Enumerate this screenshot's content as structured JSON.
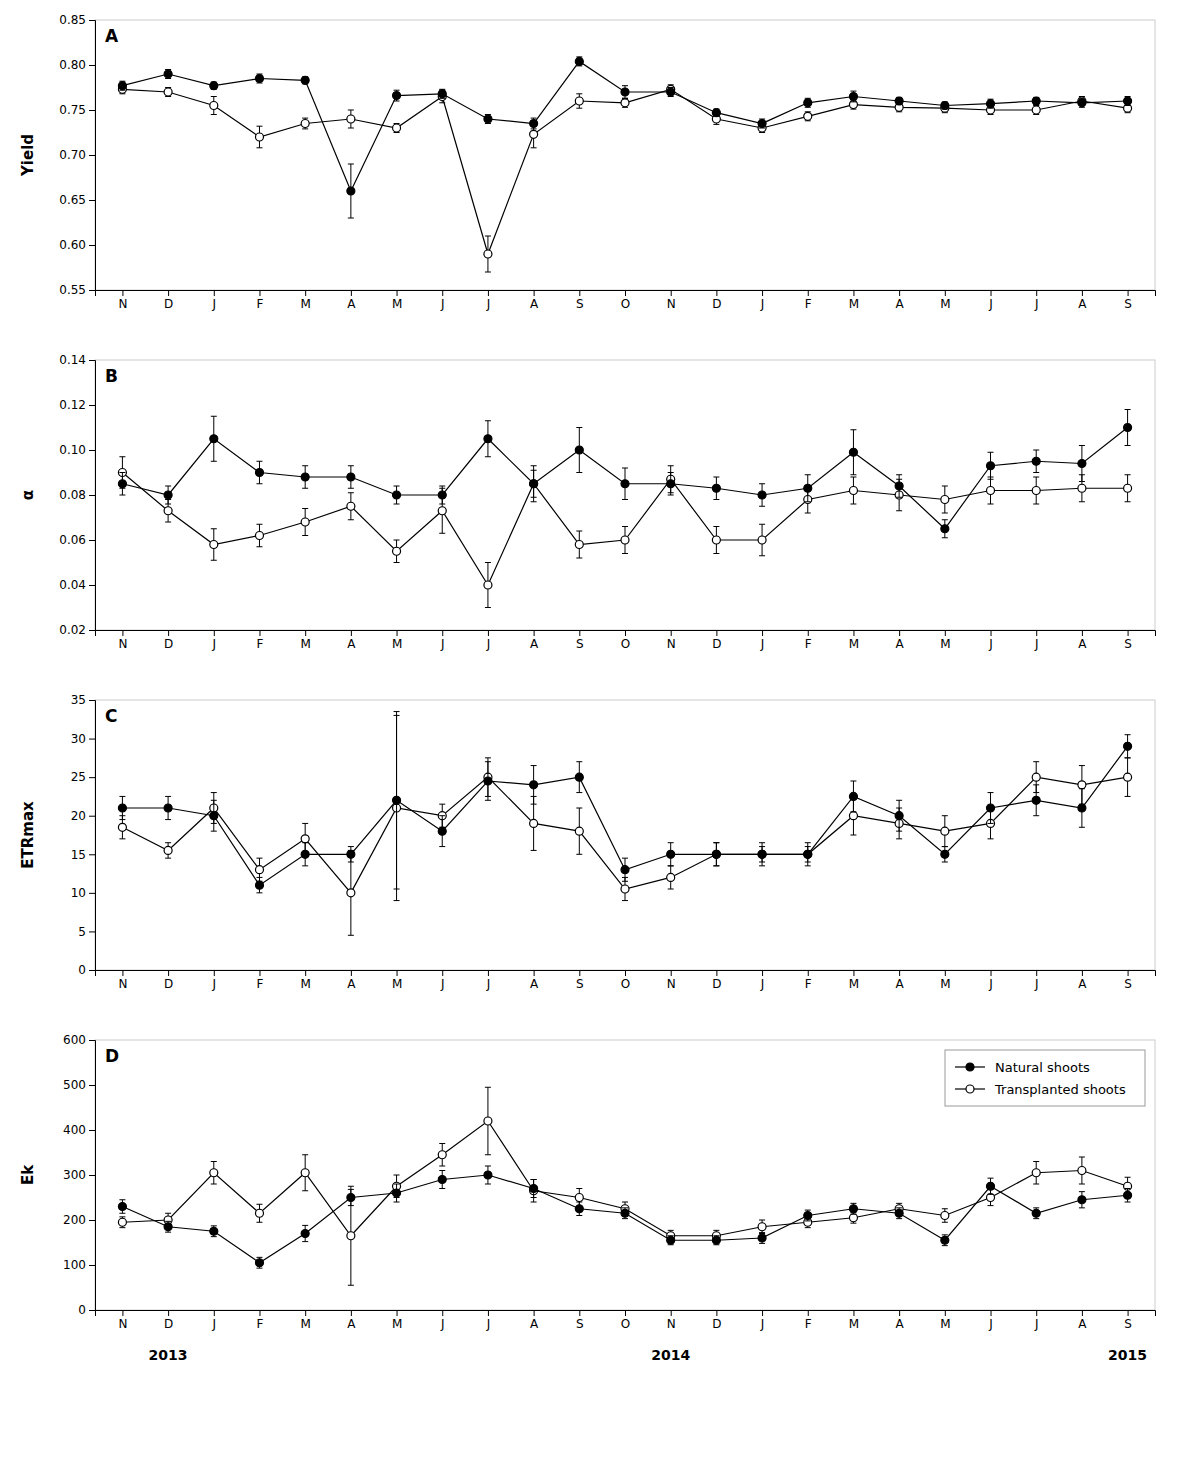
{
  "chart_data": [
    {
      "type": "line",
      "title": "A",
      "y_label": "Yield",
      "categories": [
        "N",
        "D",
        "J",
        "F",
        "M",
        "A",
        "M",
        "J",
        "J",
        "A",
        "S",
        "O",
        "N",
        "D",
        "J",
        "F",
        "M",
        "A",
        "M",
        "J",
        "J",
        "A",
        "S"
      ],
      "ylim": [
        0.55,
        0.85
      ],
      "yticks": [
        0.55,
        {
          "value": 0.6,
          "label": "0.60"
        },
        0.65,
        {
          "value": 0.7,
          "label": "0.70"
        },
        0.75,
        {
          "value": 0.8,
          "label": "0.80"
        },
        0.85
      ],
      "series": [
        {
          "color": "#000000",
          "marker": "filled-circle",
          "line_style": "solid",
          "values": [
            0.777,
            0.79,
            0.777,
            0.785,
            0.783,
            0.66,
            0.766,
            0.768,
            0.74,
            0.735,
            0.804,
            0.77,
            0.77,
            0.747,
            0.735,
            0.758,
            0.765,
            0.76,
            0.755,
            0.757,
            0.76,
            0.758,
            0.76
          ],
          "errors": [
            0.005,
            0.005,
            0.004,
            0.005,
            0.004,
            0.03,
            0.006,
            0.005,
            0.005,
            0.006,
            0.005,
            0.007,
            0.005,
            0.004,
            0.005,
            0.005,
            0.006,
            0.004,
            0.004,
            0.005,
            0.004,
            0.005,
            0.005
          ]
        },
        {
          "color": "#000000",
          "marker": "open-circle",
          "line_style": "solid",
          "values": [
            0.773,
            0.77,
            0.755,
            0.72,
            0.735,
            0.74,
            0.73,
            0.765,
            0.59,
            0.723,
            0.76,
            0.758,
            0.773,
            0.74,
            0.73,
            0.743,
            0.756,
            0.753,
            0.752,
            0.75,
            0.75,
            0.76,
            0.752
          ],
          "errors": [
            0.005,
            0.005,
            0.01,
            0.012,
            0.006,
            0.01,
            0.005,
            0.007,
            0.02,
            0.015,
            0.008,
            0.005,
            0.005,
            0.006,
            0.005,
            0.005,
            0.005,
            0.005,
            0.005,
            0.005,
            0.005,
            0.005,
            0.005
          ]
        }
      ]
    },
    {
      "type": "line",
      "title": "B",
      "y_label": "α",
      "categories": [
        "N",
        "D",
        "J",
        "F",
        "M",
        "A",
        "M",
        "J",
        "J",
        "A",
        "S",
        "O",
        "N",
        "D",
        "J",
        "F",
        "M",
        "A",
        "M",
        "J",
        "J",
        "A",
        "S"
      ],
      "ylim": [
        0.02,
        0.14
      ],
      "yticks": [
        0.02,
        0.04,
        0.06,
        0.08,
        {
          "value": 0.1,
          "label": "0.10"
        },
        0.12,
        0.14
      ],
      "series": [
        {
          "color": "#000000",
          "marker": "filled-circle",
          "line_style": "solid",
          "values": [
            0.085,
            0.08,
            0.105,
            0.09,
            0.088,
            0.088,
            0.08,
            0.08,
            0.105,
            0.085,
            0.1,
            0.085,
            0.085,
            0.083,
            0.08,
            0.083,
            0.099,
            0.084,
            0.065,
            0.093,
            0.095,
            0.094,
            0.11
          ],
          "errors": [
            0.005,
            0.004,
            0.01,
            0.005,
            0.005,
            0.005,
            0.004,
            0.004,
            0.008,
            0.006,
            0.01,
            0.007,
            0.005,
            0.005,
            0.005,
            0.006,
            0.01,
            0.005,
            0.004,
            0.006,
            0.005,
            0.008,
            0.008
          ]
        },
        {
          "color": "#000000",
          "marker": "open-circle",
          "line_style": "solid",
          "values": [
            0.09,
            0.073,
            0.058,
            0.062,
            0.068,
            0.075,
            0.055,
            0.073,
            0.04,
            0.085,
            0.058,
            0.06,
            0.087,
            0.06,
            0.06,
            0.078,
            0.082,
            0.08,
            0.078,
            0.082,
            0.082,
            0.083,
            0.083
          ],
          "errors": [
            0.007,
            0.005,
            0.007,
            0.005,
            0.006,
            0.006,
            0.005,
            0.01,
            0.01,
            0.008,
            0.006,
            0.006,
            0.006,
            0.006,
            0.007,
            0.006,
            0.006,
            0.007,
            0.006,
            0.006,
            0.006,
            0.006,
            0.006
          ]
        }
      ]
    },
    {
      "type": "line",
      "title": "C",
      "y_label": "ETRmax",
      "categories": [
        "N",
        "D",
        "J",
        "F",
        "M",
        "A",
        "M",
        "J",
        "J",
        "A",
        "S",
        "O",
        "N",
        "D",
        "J",
        "F",
        "M",
        "A",
        "M",
        "J",
        "J",
        "A",
        "S"
      ],
      "ylim": [
        0,
        35
      ],
      "yticks": [
        0,
        5,
        10,
        15,
        20,
        25,
        30,
        35
      ],
      "series": [
        {
          "color": "#000000",
          "marker": "filled-circle",
          "line_style": "solid",
          "values": [
            21.0,
            21.0,
            20.0,
            11.0,
            15.0,
            15.0,
            22.0,
            18.0,
            24.5,
            24.0,
            25.0,
            13.0,
            15.0,
            15.0,
            15.0,
            15.0,
            22.5,
            20.0,
            15.0,
            21.0,
            22.0,
            21.0,
            29.0
          ],
          "errors": [
            1.5,
            1.5,
            2.0,
            1.0,
            1.5,
            1.0,
            11.5,
            2.0,
            2.5,
            2.5,
            2.0,
            1.5,
            1.5,
            1.5,
            1.5,
            1.5,
            2.0,
            2.0,
            1.0,
            2.0,
            2.0,
            2.5,
            1.5
          ]
        },
        {
          "color": "#000000",
          "marker": "open-circle",
          "line_style": "solid",
          "values": [
            18.5,
            15.5,
            21.0,
            13.0,
            17.0,
            10.0,
            21.0,
            20.0,
            25.0,
            19.0,
            18.0,
            10.5,
            12.0,
            15.0,
            15.0,
            15.0,
            20.0,
            19.0,
            18.0,
            19.0,
            25.0,
            24.0,
            25.0
          ],
          "errors": [
            1.5,
            1.0,
            2.0,
            1.5,
            2.0,
            5.5,
            12.0,
            1.5,
            2.5,
            3.5,
            3.0,
            1.5,
            1.5,
            1.5,
            1.0,
            1.0,
            2.5,
            2.0,
            2.0,
            2.0,
            2.0,
            2.5,
            2.5
          ]
        }
      ]
    },
    {
      "type": "line",
      "title": "D",
      "y_label": "Ek",
      "categories": [
        "N",
        "D",
        "J",
        "F",
        "M",
        "A",
        "M",
        "J",
        "J",
        "A",
        "S",
        "O",
        "N",
        "D",
        "J",
        "F",
        "M",
        "A",
        "M",
        "J",
        "J",
        "A",
        "S"
      ],
      "ylim": [
        0,
        600
      ],
      "yticks": [
        0,
        100,
        200,
        300,
        400,
        500,
        600
      ],
      "legend": "upper right",
      "annotations": [
        {
          "text": "2013",
          "x": 1
        },
        {
          "text": "2014",
          "x": 12
        },
        {
          "text": "2015",
          "x": 22
        }
      ],
      "series": [
        {
          "name": "Natural shoots",
          "color": "#000000",
          "marker": "filled-circle",
          "line_style": "solid",
          "values": [
            230,
            185,
            175,
            105,
            170,
            250,
            260,
            290,
            300,
            270,
            225,
            215,
            155,
            155,
            160,
            210,
            225,
            215,
            155,
            275,
            215,
            245,
            255
          ],
          "errors": [
            15,
            12,
            12,
            12,
            18,
            18,
            20,
            20,
            20,
            20,
            15,
            12,
            10,
            10,
            12,
            12,
            12,
            12,
            12,
            18,
            12,
            18,
            15
          ]
        },
        {
          "name": "Transplanted shoots",
          "color": "#000000",
          "marker": "open-circle",
          "line_style": "solid",
          "values": [
            195,
            200,
            305,
            215,
            305,
            165,
            275,
            345,
            420,
            265,
            250,
            225,
            165,
            165,
            185,
            195,
            205,
            225,
            210,
            250,
            305,
            310,
            275
          ],
          "errors": [
            12,
            15,
            25,
            20,
            40,
            110,
            25,
            25,
            75,
            25,
            20,
            15,
            12,
            12,
            15,
            12,
            12,
            12,
            15,
            18,
            25,
            30,
            20
          ]
        }
      ]
    }
  ]
}
